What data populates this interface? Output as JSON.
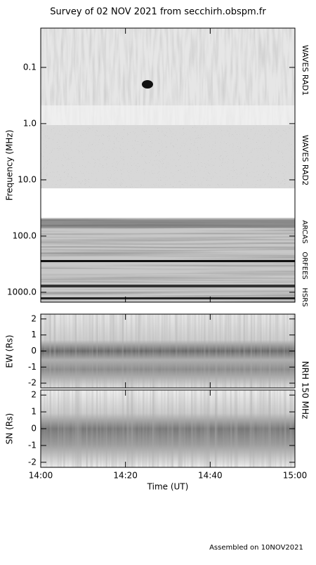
{
  "title": "Survey of 02 NOV 2021 from secchirh.obspm.fr",
  "frequency_panel": {
    "y_label": "Frequency (MHz)",
    "yscale": "log",
    "ylim": [
      0.02,
      1500
    ],
    "yticks": [
      0.1,
      {
        "value": 1,
        "label": "1.0"
      },
      {
        "value": 10,
        "label": "10.0"
      },
      {
        "value": 100,
        "label": "100.0"
      },
      {
        "value": 1000,
        "label": "1000.0"
      }
    ],
    "instruments": [
      "WAVES RAD1",
      "WAVES RAD2",
      "ARCAS",
      "ORFEES",
      "HSRS"
    ]
  },
  "nrh_panels": [
    {
      "y_label": "EW (Rs)",
      "ylim": [
        -2.3,
        2.3
      ],
      "yticks": [
        -2,
        -1,
        0,
        1,
        2
      ]
    },
    {
      "y_label": "SN (Rs)",
      "ylim": [
        -2.3,
        2.3
      ],
      "yticks": [
        -2,
        -1,
        0,
        1,
        2
      ]
    }
  ],
  "nrh_label": "NRH 150 MHz",
  "xticks": [
    "14:00",
    "14:20",
    "14:40",
    "15:00"
  ],
  "x_label": "Time (UT)",
  "footer": "Assembled on 10NOV2021"
}
